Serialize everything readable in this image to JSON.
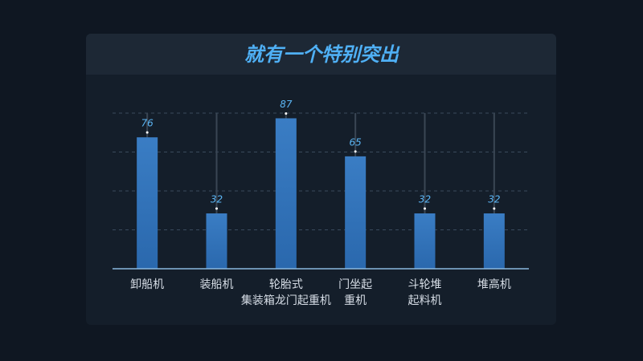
{
  "chart_data": {
    "type": "bar",
    "title": "就有一个特别突出",
    "categories": [
      "卸船机",
      "装船机",
      "轮胎式\n集装箱龙门起重机",
      "门坐起\n重机",
      "斗轮堆\n起料机",
      "堆高机"
    ],
    "values": [
      76,
      32,
      87,
      65,
      32,
      32
    ],
    "color": "#2f6fb3",
    "ylim": [
      0,
      90
    ],
    "yticks": [
      0,
      22.5,
      45,
      67.5,
      90
    ],
    "grid": true
  }
}
